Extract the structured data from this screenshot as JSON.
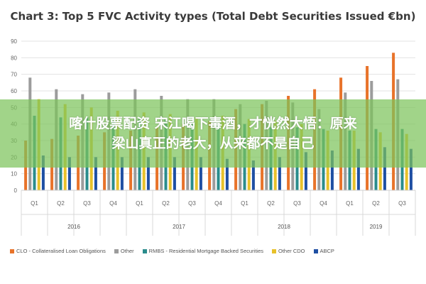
{
  "chart_data": {
    "type": "bar",
    "title": "Chart 3: Top 5 FVC Activity types (Total Debt Securities Issued €bn)",
    "xlabel": "",
    "ylabel": "",
    "ylim": [
      0,
      90
    ],
    "yticks": [
      0,
      10,
      20,
      30,
      40,
      50,
      60,
      70,
      80,
      90
    ],
    "grid": true,
    "legend_position": "bottom",
    "categories": [
      "Q1",
      "Q2",
      "Q3",
      "Q4",
      "Q1",
      "Q2",
      "Q3",
      "Q4",
      "Q1",
      "Q2",
      "Q3",
      "Q4",
      "Q1",
      "Q2",
      "Q3"
    ],
    "years": [
      {
        "label": "2016",
        "quarters": 4
      },
      {
        "label": "2017",
        "quarters": 4
      },
      {
        "label": "2018",
        "quarters": 4
      },
      {
        "label": "2019",
        "quarters": 3
      }
    ],
    "series": [
      {
        "name": "CLO - Collateralised Loan Obligations",
        "color": "#e8732a",
        "values": [
          30,
          31,
          33,
          35,
          36,
          38,
          40,
          42,
          49,
          52,
          57,
          61,
          68,
          75,
          83
        ]
      },
      {
        "name": "Other",
        "color": "#9c9c9c",
        "values": [
          68,
          61,
          58,
          59,
          61,
          57,
          55,
          55,
          52,
          54,
          53,
          49,
          59,
          66,
          67
        ]
      },
      {
        "name": "RMBS - Residential Mortgage Backed Securities",
        "color": "#2a8c8c",
        "values": [
          45,
          44,
          44,
          42,
          43,
          43,
          41,
          40,
          40,
          38,
          38,
          37,
          36,
          37,
          37
        ]
      },
      {
        "name": "Other CDO",
        "color": "#e8c12a",
        "values": [
          55,
          52,
          50,
          48,
          47,
          46,
          44,
          45,
          43,
          42,
          40,
          36,
          36,
          35,
          34
        ]
      },
      {
        "name": "ABCP",
        "color": "#1f4fa3",
        "values": [
          21,
          20,
          20,
          20,
          20,
          20,
          20,
          19,
          18,
          20,
          23,
          24,
          25,
          26,
          25
        ]
      }
    ]
  },
  "banner": {
    "line1": "喀什股票配资 宋江喝下毒酒，才恍然大悟：原来",
    "line2": "梁山真正的老大，从来都不是自己",
    "color": "#7dc45c"
  }
}
